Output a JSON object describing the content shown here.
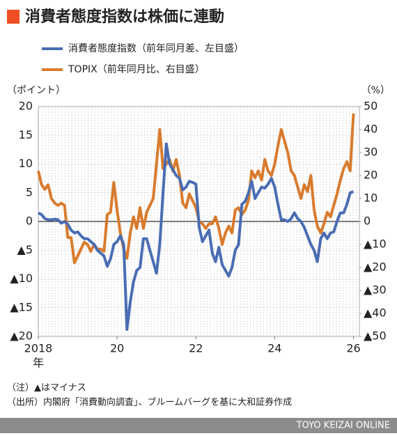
{
  "chart_data": {
    "type": "line",
    "title": "消費者態度指数は株価に連動",
    "ylabel": "（ポイント）",
    "y2label": "（%）",
    "xlabel": "年",
    "notes": [
      "（注）▲はマイナス",
      "（出所）内閣府「消費動向調査」、ブルームバーグを基に大和証券作成"
    ],
    "source": "TOYO KEIZAI ONLINE",
    "xlim": [
      2018,
      2026.15
    ],
    "xticks": [
      {
        "value": 2018,
        "label": "2018"
      },
      {
        "value": 2020,
        "label": "20"
      },
      {
        "value": 2022,
        "label": "22"
      },
      {
        "value": 2024,
        "label": "24"
      },
      {
        "value": 2026,
        "label": "26"
      }
    ],
    "ylim": [
      -20,
      20
    ],
    "yticks": [
      20,
      15,
      10,
      5,
      0,
      {
        "value": -5,
        "label": "▲5"
      },
      {
        "value": -10,
        "label": "▲10"
      },
      {
        "value": -15,
        "label": "▲15"
      },
      {
        "value": -20,
        "label": "▲20"
      }
    ],
    "y2lim": [
      -50,
      50
    ],
    "y2ticks": [
      50,
      40,
      30,
      20,
      10,
      0,
      {
        "value": -10,
        "label": "▲10"
      },
      {
        "value": -20,
        "label": "▲20"
      },
      {
        "value": -30,
        "label": "▲30"
      },
      {
        "value": -40,
        "label": "▲40"
      },
      {
        "value": -50,
        "label": "▲50"
      }
    ],
    "x": [
      2018,
      2018.083,
      2018.167,
      2018.25,
      2018.333,
      2018.417,
      2018.5,
      2018.583,
      2018.667,
      2018.75,
      2018.833,
      2018.917,
      2019,
      2019.083,
      2019.167,
      2019.25,
      2019.333,
      2019.417,
      2019.5,
      2019.583,
      2019.667,
      2019.75,
      2019.833,
      2019.917,
      2020,
      2020.083,
      2020.167,
      2020.25,
      2020.333,
      2020.417,
      2020.5,
      2020.583,
      2020.667,
      2020.75,
      2020.833,
      2020.917,
      2021,
      2021.083,
      2021.167,
      2021.25,
      2021.333,
      2021.417,
      2021.5,
      2021.583,
      2021.667,
      2021.75,
      2021.833,
      2021.917,
      2022,
      2022.083,
      2022.167,
      2022.25,
      2022.333,
      2022.417,
      2022.5,
      2022.583,
      2022.667,
      2022.75,
      2022.833,
      2022.917,
      2023,
      2023.083,
      2023.167,
      2023.25,
      2023.333,
      2023.417,
      2023.5,
      2023.583,
      2023.667,
      2023.75,
      2023.833,
      2023.917,
      2024,
      2024.083,
      2024.167,
      2024.25,
      2024.333,
      2024.417,
      2024.5,
      2024.583,
      2024.667,
      2024.75,
      2024.833,
      2024.917,
      2025,
      2025.083,
      2025.167,
      2025.25,
      2025.333,
      2025.417,
      2025.5,
      2025.583,
      2025.667,
      2025.75,
      2025.833,
      2025.917,
      2026
    ],
    "series": [
      {
        "name": "消費者態度指数（前年同月差、左目盛）",
        "color": "#4a6db3",
        "values": [
          1.5,
          1.2,
          0.5,
          0.3,
          0.3,
          0.4,
          0.3,
          -0.3,
          0,
          -0.5,
          -1.5,
          -2,
          -1.8,
          -2.5,
          -3,
          -3,
          -3.5,
          -4,
          -5,
          -5.5,
          -6,
          -7.8,
          -6.5,
          -4,
          -3.5,
          -2.5,
          -4,
          -18.8,
          -14,
          -10.5,
          -8.5,
          -8,
          -3,
          -3,
          -5,
          -7,
          -9,
          -4,
          5,
          13.5,
          10,
          9,
          8,
          7.5,
          5.5,
          6,
          7,
          6.8,
          6.5,
          -1,
          -3.5,
          -2.5,
          -1.5,
          -5.5,
          -7,
          -4.5,
          -7.5,
          -8.5,
          -9.5,
          -8,
          -5,
          -4,
          3,
          3.5,
          5,
          7,
          4,
          5,
          6,
          5.8,
          6.5,
          7.5,
          6,
          3,
          0.3,
          0.3,
          0,
          0.5,
          1.5,
          0.5,
          0,
          -1,
          -2.5,
          -4,
          -5,
          -7,
          -3,
          -2,
          -3,
          -2,
          -1.8,
          0,
          1.5,
          1.5,
          3,
          5,
          5.2
        ]
      },
      {
        "name": "TOPIX（前年同月比、右目盛）",
        "color": "#d97b2d",
        "axis": "y2",
        "values": [
          22,
          16,
          14,
          16,
          10,
          8,
          7,
          8,
          7,
          -7,
          -7,
          -18,
          -15,
          -12,
          -9,
          -10,
          -13,
          -10,
          -12,
          -12,
          -13,
          3,
          4,
          17,
          5,
          -5,
          -12,
          -16,
          -5,
          2,
          -3,
          6,
          -3,
          4,
          7,
          10,
          25,
          40,
          23,
          25,
          27,
          22,
          27,
          20,
          8,
          6,
          12,
          9,
          6,
          0,
          -1,
          -3,
          -1,
          -1,
          2,
          -3,
          -10,
          -5,
          -2,
          -5,
          5,
          6,
          3,
          5,
          9,
          22,
          19,
          22,
          18,
          27,
          22,
          20,
          25,
          33,
          40,
          35,
          30,
          22,
          20,
          15,
          10,
          16,
          13,
          20,
          5,
          -2,
          -5,
          -1,
          4,
          2,
          7,
          12,
          18,
          23,
          26,
          22,
          47
        ]
      }
    ]
  }
}
